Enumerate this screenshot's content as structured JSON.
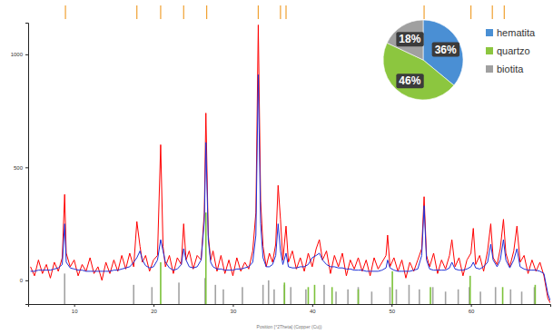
{
  "chart_data": [
    {
      "type": "line",
      "xlabel": "Position [°2Theta] (Copper (Cu))",
      "xlim": [
        4.2,
        70
      ],
      "xticks": [
        10,
        20,
        30,
        40,
        50,
        60
      ],
      "ylim": [
        -105,
        1140
      ],
      "yticks": [
        0,
        500,
        1000
      ],
      "grid": false,
      "x": [
        4.5,
        5,
        5.5,
        6,
        6.5,
        7,
        7.5,
        8,
        8.5,
        8.8,
        9,
        9.5,
        10,
        10.5,
        11,
        11.5,
        12,
        12.5,
        13,
        13.5,
        14,
        14.5,
        15,
        15.5,
        16,
        16.5,
        17,
        17.5,
        17.9,
        18.3,
        18.6,
        19,
        19.5,
        20,
        20.5,
        20.9,
        21.2,
        21.5,
        22,
        22.5,
        23,
        23.5,
        23.8,
        24.1,
        24.5,
        25,
        25.5,
        26,
        26.4,
        26.6,
        26.9,
        27.2,
        27.5,
        28,
        28.5,
        29,
        29.5,
        30,
        30.5,
        31,
        31.5,
        32,
        32.5,
        32.9,
        33.2,
        33.5,
        33.8,
        34.2,
        34.6,
        35,
        35.4,
        35.7,
        36,
        36.3,
        36.7,
        37,
        37.5,
        38,
        38.5,
        39,
        39.5,
        40,
        40.5,
        40.9,
        41.3,
        41.8,
        42.3,
        42.8,
        43.3,
        43.8,
        44.3,
        44.8,
        45.3,
        45.8,
        46.3,
        46.8,
        47.3,
        47.8,
        48.3,
        48.8,
        49.3,
        49.5,
        49.8,
        50.3,
        50.8,
        51.3,
        51.8,
        52.3,
        52.8,
        53.3,
        53.8,
        54.1,
        54.4,
        54.8,
        55.3,
        55.8,
        56.3,
        56.8,
        57.3,
        57.6,
        58,
        58.5,
        59,
        59.5,
        60,
        60.3,
        60.6,
        61.1,
        61.6,
        62.1,
        62.5,
        62.8,
        63.3,
        63.7,
        64.1,
        64.4,
        64.9,
        65.4,
        65.8,
        66.2,
        66.7,
        67.2,
        67.7,
        68.2,
        68.7,
        69.2,
        69.7,
        70
      ],
      "series": [
        {
          "type": "bar",
          "color": "#a3a3a3",
          "x": [
            8.8,
            17.5,
            19.8,
            23.2,
            26.5,
            27.8,
            28.8,
            31.2,
            33.8,
            34.5,
            35.2,
            36.5,
            37.3,
            39.2,
            41.5,
            43.0,
            44.5,
            45.8,
            47.5,
            49.8,
            50.6,
            52.2,
            53.5,
            55.2,
            56.8,
            58.4,
            59.8,
            61.2,
            63.1,
            65.0,
            66.4,
            68.0
          ],
          "values": [
            30,
            -20,
            -30,
            -10,
            10,
            -20,
            -40,
            -30,
            -20,
            0,
            -40,
            -20,
            -30,
            -40,
            -20,
            -50,
            -40,
            -30,
            -50,
            -30,
            -40,
            -20,
            -40,
            -30,
            -50,
            -40,
            -30,
            -50,
            -30,
            -40,
            -50,
            -30
          ]
        },
        {
          "type": "bar",
          "color": "#7cc23a",
          "x": [
            20.9,
            26.6,
            36.5,
            39.5,
            40.3,
            42.5,
            45.8,
            50.1,
            54.9,
            59.9,
            64.0,
            68.1
          ],
          "values": [
            80,
            300,
            -10,
            -30,
            -20,
            -30,
            -40,
            40,
            -30,
            20,
            -30,
            -20
          ]
        },
        {
          "color": "#ff0000",
          "values": [
            60,
            20,
            90,
            30,
            70,
            10,
            80,
            40,
            100,
            380,
            120,
            60,
            90,
            20,
            70,
            40,
            100,
            30,
            60,
            0,
            80,
            30,
            90,
            40,
            110,
            50,
            120,
            60,
            260,
            150,
            80,
            110,
            40,
            90,
            110,
            600,
            150,
            60,
            110,
            30,
            100,
            70,
            250,
            90,
            130,
            50,
            110,
            90,
            300,
            740,
            200,
            90,
            130,
            40,
            110,
            30,
            90,
            20,
            100,
            40,
            80,
            50,
            130,
            300,
            1130,
            350,
            150,
            60,
            120,
            80,
            160,
            420,
            270,
            90,
            240,
            80,
            130,
            50,
            100,
            40,
            120,
            60,
            140,
            180,
            90,
            130,
            30,
            110,
            60,
            120,
            20,
            90,
            50,
            100,
            40,
            90,
            20,
            100,
            50,
            80,
            110,
            200,
            60,
            100,
            40,
            90,
            10,
            80,
            40,
            90,
            140,
            370,
            110,
            60,
            120,
            30,
            90,
            50,
            110,
            180,
            60,
            100,
            20,
            90,
            120,
            230,
            70,
            110,
            40,
            130,
            250,
            100,
            70,
            140,
            270,
            120,
            60,
            130,
            240,
            80,
            110,
            30,
            90,
            40,
            80,
            20,
            -80,
            -100
          ]
        },
        {
          "color": "#1f2fd6",
          "values": [
            40,
            40,
            45,
            45,
            45,
            45,
            50,
            55,
            70,
            250,
            80,
            55,
            50,
            45,
            45,
            40,
            40,
            40,
            40,
            40,
            40,
            40,
            45,
            45,
            50,
            55,
            60,
            80,
            100,
            130,
            90,
            65,
            55,
            60,
            90,
            180,
            130,
            80,
            55,
            45,
            50,
            70,
            140,
            90,
            60,
            55,
            60,
            90,
            260,
            610,
            180,
            80,
            60,
            50,
            50,
            45,
            45,
            45,
            50,
            50,
            55,
            60,
            80,
            200,
            910,
            250,
            100,
            60,
            60,
            70,
            110,
            250,
            130,
            70,
            120,
            60,
            55,
            55,
            60,
            60,
            70,
            100,
            110,
            120,
            90,
            70,
            60,
            60,
            55,
            55,
            50,
            50,
            45,
            45,
            45,
            40,
            40,
            40,
            40,
            45,
            55,
            90,
            55,
            45,
            40,
            40,
            40,
            40,
            45,
            50,
            110,
            330,
            90,
            50,
            45,
            45,
            45,
            45,
            55,
            80,
            50,
            45,
            45,
            50,
            60,
            80,
            55,
            50,
            60,
            80,
            160,
            90,
            60,
            90,
            180,
            90,
            55,
            90,
            140,
            60,
            50,
            45,
            45,
            45,
            40,
            30,
            -60,
            -90
          ]
        },
        {
          "type": "rug",
          "color": "#f0a030",
          "x": [
            8.9,
            17.9,
            20.9,
            23.8,
            26.7,
            33.2,
            36.0,
            36.7,
            54.1,
            60.0,
            62.7,
            64.2
          ]
        }
      ]
    },
    {
      "type": "pie",
      "categories": [
        "hematita",
        "quartzo",
        "biotita"
      ],
      "values": [
        36,
        46,
        18
      ],
      "value_labels": [
        "36%",
        "46%",
        "18%"
      ],
      "colors": [
        "#4a8fd4",
        "#8cc63f",
        "#a0a0a0"
      ],
      "data_labels": true,
      "legend": "right"
    }
  ]
}
